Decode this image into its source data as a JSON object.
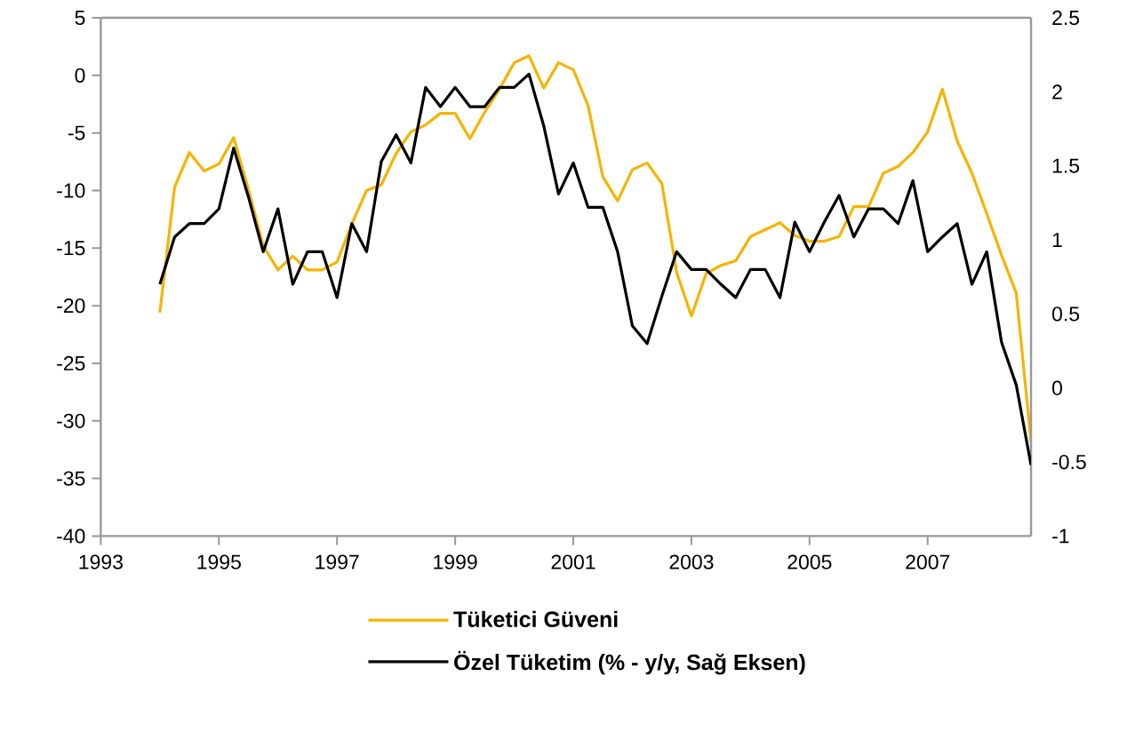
{
  "chart_data": {
    "type": "line",
    "x": [
      1994,
      1994.25,
      1994.5,
      1994.75,
      1995,
      1995.25,
      1995.5,
      1995.75,
      1996,
      1996.25,
      1996.5,
      1996.75,
      1997,
      1997.25,
      1997.5,
      1997.75,
      1998,
      1998.25,
      1998.5,
      1998.75,
      1999,
      1999.25,
      1999.5,
      1999.75,
      2000,
      2000.25,
      2000.5,
      2000.75,
      2001,
      2001.25,
      2001.5,
      2001.75,
      2002,
      2002.25,
      2002.5,
      2002.75,
      2003,
      2003.25,
      2003.5,
      2003.75,
      2004,
      2004.25,
      2004.5,
      2004.75,
      2005,
      2005.25,
      2005.5,
      2005.75,
      2006,
      2006.25,
      2006.5,
      2006.75,
      2007,
      2007.25,
      2007.5,
      2007.75,
      2008,
      2008.25,
      2008.5,
      2008.75
    ],
    "series": [
      {
        "name": "Tüketici Güveni",
        "color": "#f5b400",
        "values": [
          -20.6,
          -9.7,
          -6.7,
          -8.3,
          -7.7,
          -5.4,
          -9.9,
          -14.8,
          -16.9,
          -15.7,
          -16.9,
          -16.9,
          -16.2,
          -12.9,
          -10.0,
          -9.5,
          -6.8,
          -4.9,
          -4.3,
          -3.3,
          -3.3,
          -5.5,
          -3.2,
          -1.2,
          1.1,
          1.7,
          -1.1,
          1.1,
          0.5,
          -2.6,
          -8.8,
          -10.9,
          -8.2,
          -7.6,
          -9.4,
          -17.1,
          -20.9,
          -17.2,
          -16.5,
          -16.1,
          -14.0,
          -13.4,
          -12.8,
          -13.9,
          -14.4,
          -14.4,
          -14.0,
          -11.4,
          -11.4,
          -8.5,
          -7.9,
          -6.7,
          -4.9,
          -1.2,
          -5.7,
          -8.5,
          -12.0,
          -15.6,
          -18.9,
          -31.8
        ]
      },
      {
        "name": "Özel Tüketim (% - y/y, Sağ Eksen)",
        "color": "#000000",
        "axis": "y2",
        "values": [
          0.7,
          1.02,
          1.11,
          1.11,
          1.21,
          1.62,
          1.29,
          0.92,
          1.21,
          0.7,
          0.92,
          0.92,
          0.61,
          1.11,
          0.92,
          1.53,
          1.71,
          1.52,
          2.03,
          1.9,
          2.03,
          1.9,
          1.9,
          2.03,
          2.03,
          2.12,
          1.77,
          1.31,
          1.52,
          1.22,
          1.22,
          0.92,
          0.42,
          0.3,
          0.62,
          0.92,
          0.8,
          0.8,
          0.7,
          0.61,
          0.8,
          0.8,
          0.61,
          1.12,
          0.92,
          1.12,
          1.3,
          1.02,
          1.21,
          1.21,
          1.11,
          1.4,
          0.92,
          1.02,
          1.11,
          0.7,
          0.92,
          0.31,
          0.02,
          -0.52
        ]
      }
    ],
    "xlim": [
      1993,
      2008.75
    ],
    "xticks": [
      1993,
      1995,
      1997,
      1999,
      2001,
      2003,
      2005,
      2007
    ],
    "ylim": [
      -40,
      5
    ],
    "yticks": [
      -40,
      -35,
      -30,
      -25,
      -20,
      -15,
      -10,
      -5,
      0,
      5
    ],
    "y2lim": [
      -1,
      2.5
    ],
    "y2ticks": [
      -1,
      -0.5,
      0,
      0.5,
      1,
      1.5,
      2,
      2.5
    ],
    "grid": false,
    "legend": "bottom",
    "marker": "none",
    "line_style": "solid"
  }
}
